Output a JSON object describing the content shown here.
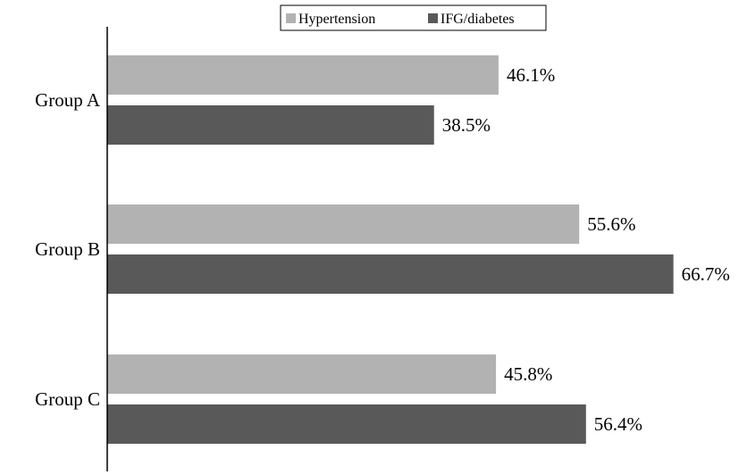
{
  "chart_data": {
    "type": "bar",
    "orientation": "horizontal",
    "categories": [
      "Group A",
      "Group B",
      "Group C"
    ],
    "series": [
      {
        "name": "Hypertension",
        "values": [
          46.1,
          55.6,
          45.8
        ],
        "labels": [
          "46.1%",
          "55.6%",
          "45.8%"
        ],
        "color": "#b2b2b2"
      },
      {
        "name": "IFG/diabetes",
        "values": [
          38.5,
          66.7,
          56.4
        ],
        "labels": [
          "38.5%",
          "66.7%",
          "56.4%"
        ],
        "color": "#595959"
      }
    ],
    "title": "",
    "xlabel": "",
    "ylabel": "",
    "xlim": [
      0,
      70
    ],
    "grid": false,
    "legend": "top-right"
  }
}
